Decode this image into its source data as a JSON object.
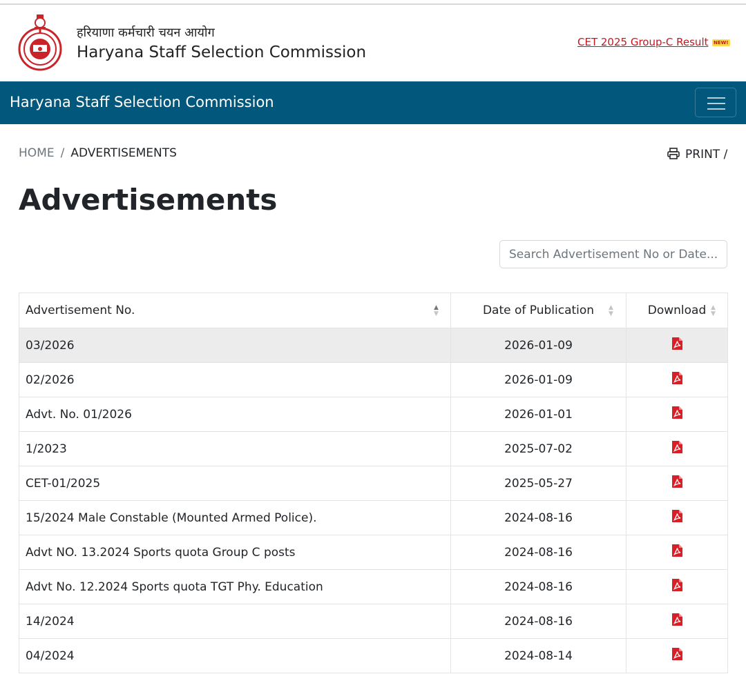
{
  "header": {
    "hindi_title": "हरियाणा कर्मचारी चयन आयोग",
    "title": "Haryana Staff Selection Commission",
    "result_link": "CET 2025 Group-C Result",
    "new_badge": "NEW!"
  },
  "navbar": {
    "title": "Haryana Staff Selection Commission"
  },
  "breadcrumb": {
    "home": "HOME",
    "separator": "/",
    "current": "ADVERTISEMENTS"
  },
  "print_label": "PRINT /",
  "page_title": "Advertisements",
  "search": {
    "placeholder": "Search Advertisement No or Date..."
  },
  "table": {
    "columns": [
      "Advertisement No.",
      "Date of Publication",
      "Download"
    ],
    "sort_column": "Advertisement No.",
    "rows": [
      {
        "adv_no": "03/2026",
        "date": "2026-01-09"
      },
      {
        "adv_no": "02/2026",
        "date": "2026-01-09"
      },
      {
        "adv_no": "Advt. No. 01/2026",
        "date": "2026-01-01"
      },
      {
        "adv_no": "1/2023",
        "date": "2025-07-02"
      },
      {
        "adv_no": "CET-01/2025",
        "date": "2025-05-27"
      },
      {
        "adv_no": "15/2024 Male Constable (Mounted Armed Police).",
        "date": "2024-08-16"
      },
      {
        "adv_no": "Advt NO. 13.2024 Sports quota Group C posts",
        "date": "2024-08-16"
      },
      {
        "adv_no": "Advt No. 12.2024 Sports quota TGT Phy. Education",
        "date": "2024-08-16"
      },
      {
        "adv_no": "14/2024",
        "date": "2024-08-16"
      },
      {
        "adv_no": "04/2024",
        "date": "2024-08-14"
      }
    ],
    "download_icon": "file-pdf-icon"
  },
  "colors": {
    "navbar": "#02587c",
    "link_red": "#c01820",
    "pdf_red": "#d81e26"
  }
}
